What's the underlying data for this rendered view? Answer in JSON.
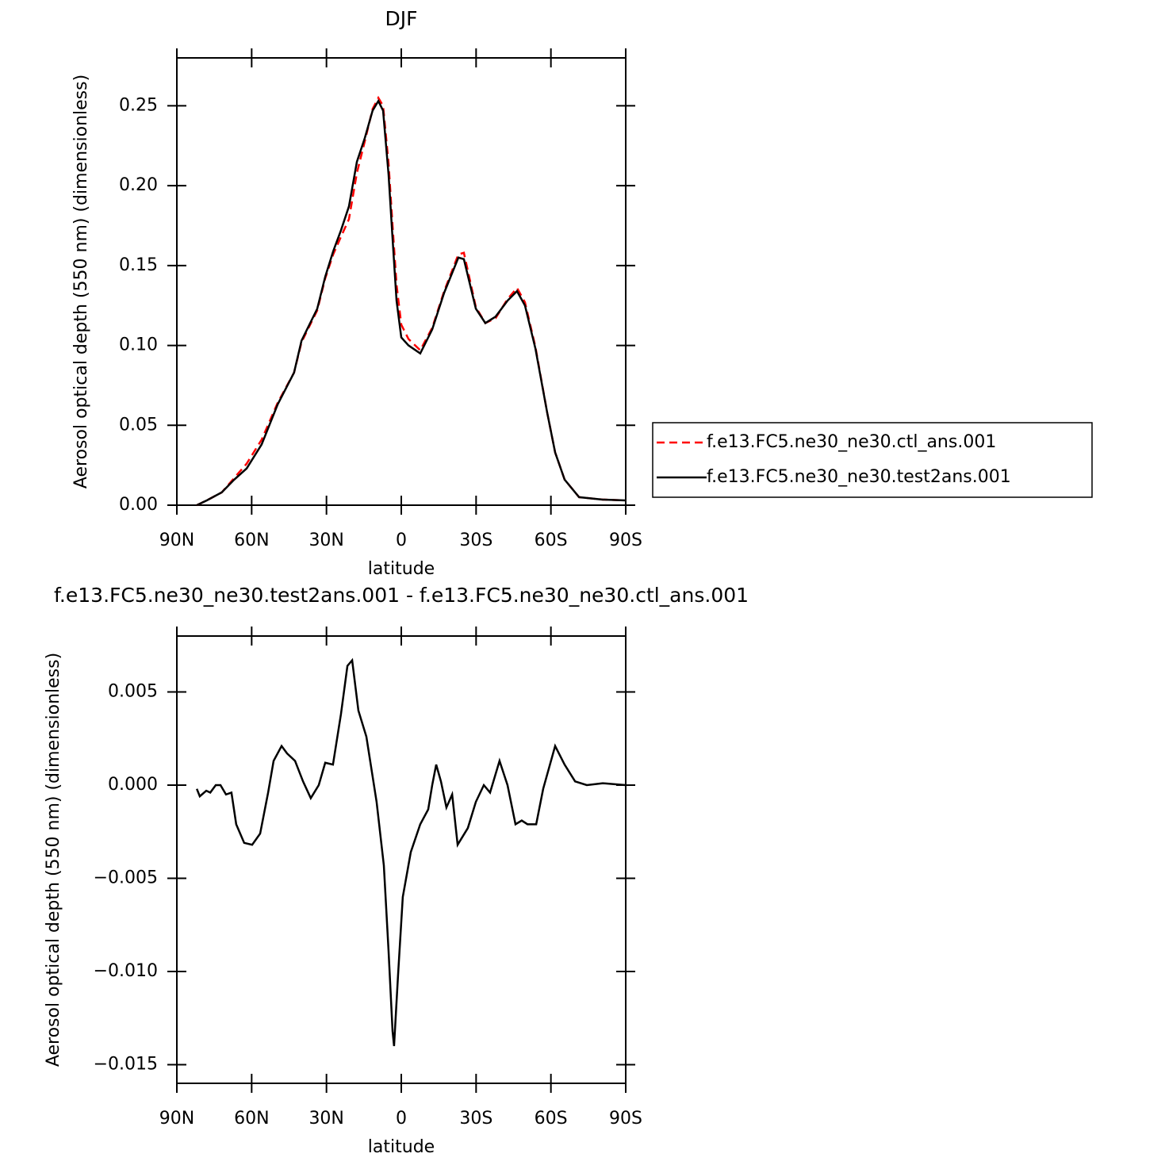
{
  "chart_data": [
    {
      "type": "line",
      "title": "DJF",
      "xlabel": "latitude",
      "ylabel": "Aerosol optical depth (550 nm) (dimensionless)",
      "x": [
        82,
        78,
        72,
        67,
        62,
        56,
        49.6,
        43,
        40,
        33.7,
        30.5,
        27.3,
        24.2,
        21,
        17.8,
        14.6,
        11.5,
        9.2,
        7.3,
        5.1,
        3.5,
        1.9,
        0,
        -2.9,
        -7.6,
        -12.4,
        -17.2,
        -22.9,
        -25.1,
        -29.9,
        -33.7,
        -37.8,
        -42.6,
        -46.4,
        -49.6,
        -53.8,
        -58.5,
        -61.7,
        -65.5,
        -71.3,
        -80.8,
        -90
      ],
      "series": [
        {
          "name": "f.e13.FC5.ne30_ne30.ctl_ans.001",
          "color": "#ff0000",
          "line_style": "dashed",
          "values": [
            0,
            0.003,
            0.008,
            0.017,
            0.026,
            0.041,
            0.064,
            0.083,
            0.102,
            0.122,
            0.142,
            0.157,
            0.168,
            0.179,
            0.208,
            0.228,
            0.248,
            0.255,
            0.25,
            0.214,
            0.175,
            0.138,
            0.113,
            0.104,
            0.097,
            0.111,
            0.134,
            0.157,
            0.158,
            0.124,
            0.114,
            0.117,
            0.129,
            0.136,
            0.127,
            0.099,
            0.058,
            0.033,
            0.016,
            0.005,
            0.0035,
            0.003
          ]
        },
        {
          "name": "f.e13.FC5.ne30_ne30.test2ans.001",
          "color": "#000000",
          "line_style": "solid",
          "values": [
            0,
            0.003,
            0.008,
            0.016,
            0.023,
            0.038,
            0.063,
            0.083,
            0.103,
            0.123,
            0.143,
            0.159,
            0.172,
            0.187,
            0.215,
            0.23,
            0.247,
            0.253,
            0.247,
            0.207,
            0.167,
            0.128,
            0.105,
            0.1,
            0.095,
            0.11,
            0.133,
            0.155,
            0.154,
            0.123,
            0.114,
            0.118,
            0.128,
            0.134,
            0.125,
            0.098,
            0.058,
            0.033,
            0.016,
            0.005,
            0.0035,
            0.003
          ]
        }
      ],
      "xlim": [
        90,
        -90
      ],
      "xticks": [
        {
          "value": 90,
          "label": "90N"
        },
        {
          "value": 60,
          "label": "60N"
        },
        {
          "value": 30,
          "label": "30N"
        },
        0,
        {
          "value": -30,
          "label": "30S"
        },
        {
          "value": -60,
          "label": "60S"
        },
        {
          "value": -90,
          "label": "90S"
        }
      ],
      "ylim": [
        0,
        0.28
      ],
      "yticks": [
        {
          "value": 0,
          "label": "0.00"
        },
        0.05,
        {
          "value": 0.1,
          "label": "0.10"
        },
        0.15,
        {
          "value": 0.2,
          "label": "0.20"
        },
        0.25
      ],
      "legend": "right"
    },
    {
      "type": "line",
      "title": "f.e13.FC5.ne30_ne30.test2ans.001 - f.e13.FC5.ne30_ne30.ctl_ans.001",
      "xlabel": "latitude",
      "ylabel": "Aerosol optical depth (550 nm) (dimensionless)",
      "x": [
        82,
        80.8,
        78.2,
        76.6,
        74.4,
        72.5,
        70.3,
        68.1,
        66.2,
        63,
        59.8,
        56.6,
        53.4,
        51.2,
        48,
        45.8,
        42.6,
        39.4,
        36.3,
        33.1,
        30.5,
        27.4,
        24.2,
        21.6,
        19.7,
        17.2,
        14,
        9.9,
        7,
        5.1,
        3.5,
        2.9,
        1.3,
        -0.6,
        -3.8,
        -7.6,
        -10.8,
        -12.4,
        -14,
        -15.9,
        -18.1,
        -20.4,
        -22.6,
        -26.7,
        -29.9,
        -33.1,
        -35.6,
        -39.4,
        -42.6,
        -45.8,
        -48.3,
        -50.6,
        -54.1,
        -56.9,
        -61.7,
        -65.5,
        -69.7,
        -74.4,
        -80.8,
        -90
      ],
      "series": [
        {
          "color": "#000000",
          "line_style": "solid",
          "values": [
            -0.0002,
            -0.0006,
            -0.0003,
            -0.0004,
            0,
            0,
            -0.0005,
            -0.0004,
            -0.0021,
            -0.0031,
            -0.0032,
            -0.0026,
            -0.0004,
            0.0013,
            0.0021,
            0.0017,
            0.0013,
            0.0002,
            -0.0007,
            0,
            0.0012,
            0.0011,
            0.0038,
            0.0064,
            0.0067,
            0.004,
            0.0026,
            -0.0009,
            -0.0043,
            -0.0089,
            -0.0132,
            -0.014,
            -0.0102,
            -0.006,
            -0.0036,
            -0.0021,
            -0.0013,
            0,
            0.0011,
            0.0002,
            -0.0012,
            -0.0005,
            -0.0032,
            -0.0023,
            -0.0009,
            0,
            -0.0004,
            0.0013,
            0,
            -0.0021,
            -0.0019,
            -0.0021,
            -0.0021,
            -0.0002,
            0.0021,
            0.0011,
            0.0002,
            0,
            0.0001,
            0
          ]
        }
      ],
      "xlim": [
        90,
        -90
      ],
      "xticks": [
        {
          "value": 90,
          "label": "90N"
        },
        {
          "value": 60,
          "label": "60N"
        },
        {
          "value": 30,
          "label": "30N"
        },
        0,
        {
          "value": -30,
          "label": "30S"
        },
        {
          "value": -60,
          "label": "60S"
        },
        {
          "value": -90,
          "label": "90S"
        }
      ],
      "ylim": [
        -0.016,
        0.008
      ],
      "yticks": [
        {
          "value": -0.015,
          "label": "−0.015"
        },
        {
          "value": -0.01,
          "label": "−0.010"
        },
        {
          "value": -0.005,
          "label": "−0.005"
        },
        {
          "value": 0,
          "label": "0.000"
        },
        0.005
      ]
    }
  ]
}
